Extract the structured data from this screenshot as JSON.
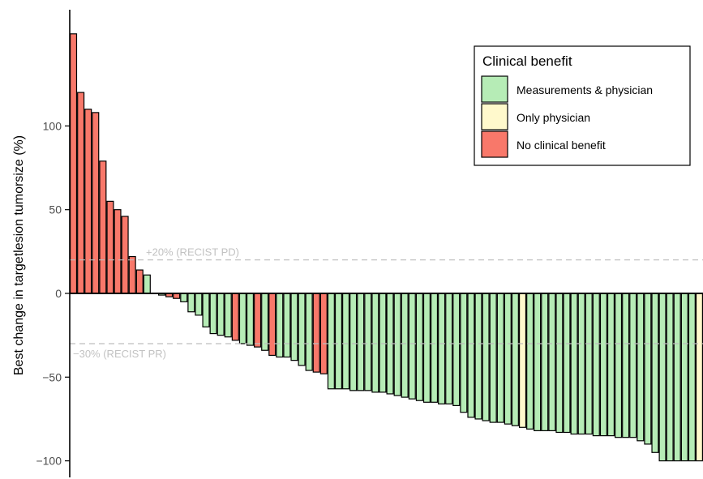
{
  "chart_data": {
    "type": "bar",
    "title": "",
    "xlabel": "",
    "ylabel": "Best change in targetlesion tumorsize (%)",
    "ylim": [
      -106,
      158
    ],
    "yticks": [
      -100,
      -50,
      0,
      50,
      100
    ],
    "yticklabels": [
      "−100",
      "−50",
      "0",
      "50",
      "100"
    ],
    "grid": false,
    "reference_lines": [
      {
        "value": 20,
        "label": "+20% (RECIST PD)"
      },
      {
        "value": -30,
        "label": "−30% (RECIST PR)"
      }
    ],
    "legend": {
      "title": "Clinical benefit",
      "position": "top-right",
      "entries": [
        {
          "key": "M",
          "label": "Measurements & physician",
          "color": "#b6ecb6"
        },
        {
          "key": "P",
          "label": "Only physician",
          "color": "#fff9cc"
        },
        {
          "key": "N",
          "label": "No clinical benefit",
          "color": "#f8786a"
        }
      ]
    },
    "values": [
      155,
      120,
      110,
      108,
      79,
      55,
      50,
      46,
      22,
      14,
      11,
      0,
      -1,
      -2,
      -3,
      -5,
      -11,
      -13,
      -20,
      -24,
      -25,
      -26,
      -28,
      -30,
      -31,
      -32,
      -34,
      -37,
      -38,
      -38,
      -40,
      -43,
      -46,
      -47,
      -48,
      -57,
      -57,
      -57,
      -58,
      -58,
      -58,
      -59,
      -59,
      -60,
      -61,
      -62,
      -63,
      -64,
      -65,
      -65,
      -66,
      -66,
      -67,
      -71,
      -74,
      -75,
      -76,
      -77,
      -77,
      -78,
      -79,
      -80,
      -81,
      -82,
      -82,
      -82,
      -83,
      -83,
      -84,
      -84,
      -84,
      -85,
      -85,
      -85,
      -86,
      -86,
      -86,
      -88,
      -90,
      -95,
      -100,
      -100,
      -100,
      -100,
      -100,
      -100
    ],
    "benefit": [
      "N",
      "N",
      "N",
      "N",
      "N",
      "N",
      "N",
      "N",
      "N",
      "N",
      "M",
      "M",
      "M",
      "N",
      "N",
      "M",
      "M",
      "M",
      "M",
      "M",
      "M",
      "M",
      "N",
      "M",
      "M",
      "N",
      "M",
      "N",
      "M",
      "M",
      "M",
      "M",
      "M",
      "N",
      "N",
      "M",
      "M",
      "M",
      "M",
      "M",
      "M",
      "M",
      "M",
      "M",
      "M",
      "M",
      "M",
      "M",
      "M",
      "M",
      "M",
      "M",
      "M",
      "M",
      "M",
      "M",
      "M",
      "M",
      "M",
      "M",
      "M",
      "P",
      "M",
      "M",
      "M",
      "M",
      "M",
      "M",
      "M",
      "M",
      "M",
      "M",
      "M",
      "M",
      "M",
      "M",
      "M",
      "M",
      "M",
      "M",
      "M",
      "M",
      "M",
      "M",
      "M",
      "P"
    ]
  }
}
